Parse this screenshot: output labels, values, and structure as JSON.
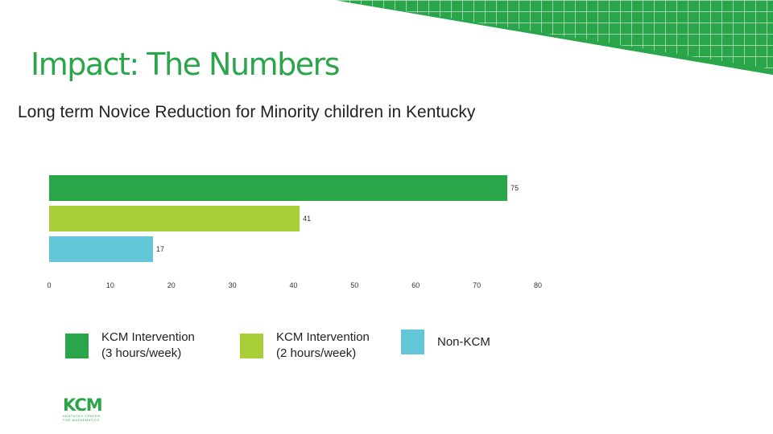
{
  "slide": {
    "title": "Impact: The Numbers",
    "subtitle": "Long term Novice Reduction for Minority children in Kentucky"
  },
  "chart_data": {
    "type": "bar",
    "orientation": "horizontal",
    "title": "Long term Novice Reduction for Minority children in Kentucky",
    "categories": [
      "KCM Intervention\n(3 hours/week)",
      "KCM Intervention\n(2 hours/week)",
      "Non-KCM"
    ],
    "values": [
      75,
      41,
      17
    ],
    "colors": [
      "#2aa54a",
      "#a8cf38",
      "#62c6d6"
    ],
    "xlim": [
      0,
      80
    ],
    "xticks": [
      0,
      10,
      20,
      30,
      40,
      50,
      60,
      70,
      80
    ],
    "xlabel": "",
    "ylabel": "",
    "grid": false,
    "legend": "bottom"
  },
  "legend": {
    "items": [
      {
        "label": "KCM Intervention\n(3 hours/week)",
        "color": "#2aa54a"
      },
      {
        "label": "KCM Intervention\n(2 hours/week)",
        "color": "#a8cf38"
      },
      {
        "label": "Non-KCM",
        "color": "#62c6d6"
      }
    ]
  },
  "logo": {
    "text": "KCM",
    "subtitle": "KENTUCKY CENTER FOR MATHEMATICS"
  },
  "colors": {
    "brand_green": "#2aa54a",
    "lime": "#a8cf38",
    "teal": "#62c6d6"
  }
}
